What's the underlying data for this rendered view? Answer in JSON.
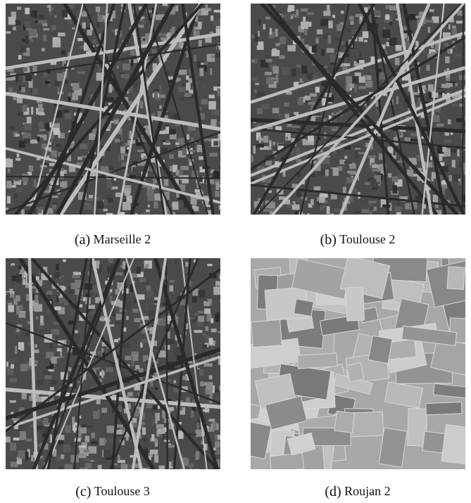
{
  "figure": {
    "panels": [
      {
        "label": "(a)",
        "caption": "Marseille 2"
      },
      {
        "label": "(b)",
        "caption": "Toulouse 2"
      },
      {
        "label": "(c)",
        "caption": "Toulouse 3"
      },
      {
        "label": "(d)",
        "caption": "Roujan 2"
      }
    ]
  }
}
